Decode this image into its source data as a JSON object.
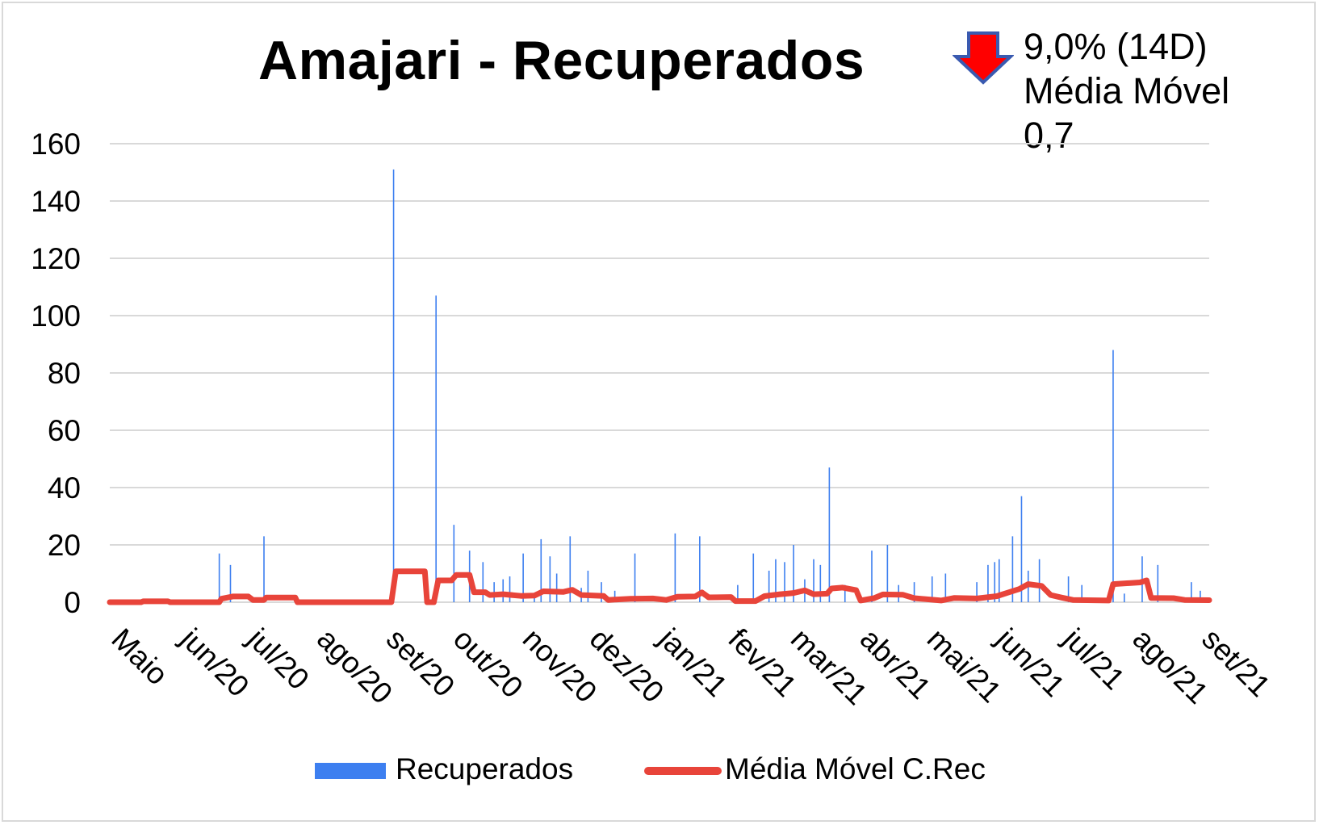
{
  "title": "Amajari - Recuperados",
  "annotation": {
    "trend_icon": "red-down-arrow-icon",
    "line1": "9,0% (14D)",
    "line2": "Média Móvel",
    "line3": "0,7"
  },
  "legend": {
    "bars_label": "Recuperados",
    "line_label": "Média Móvel C.Rec"
  },
  "colors": {
    "bars": "#3d7ff0",
    "line": "#e8443a",
    "grid": "#d9d9d9",
    "arrow_fill": "#ff0000",
    "arrow_stroke": "#3a5ab0"
  },
  "chart_data": {
    "type": "bar",
    "title": "Amajari - Recuperados",
    "xlabel": "",
    "ylabel": "",
    "ylim": [
      0,
      160
    ],
    "yticks": [
      0,
      20,
      40,
      60,
      80,
      100,
      120,
      140,
      160
    ],
    "grid": true,
    "legend_position": "bottom",
    "x_start": "2020-05-01",
    "x_end": "2021-09-05",
    "x_tick_labels": [
      "Maio",
      "jun/20",
      "jul/20",
      "ago/20",
      "set/20",
      "out/20",
      "nov/20",
      "dez/20",
      "jan/21",
      "fev/21",
      "mar/21",
      "abr/21",
      "mai/21",
      "jun/21",
      "jul/21",
      "ago/21",
      "set/21"
    ],
    "series": [
      {
        "name": "Recuperados",
        "type": "bar",
        "points": [
          [
            "2020-06-19",
            17
          ],
          [
            "2020-06-24",
            13
          ],
          [
            "2020-07-09",
            23
          ],
          [
            "2020-09-05",
            151
          ],
          [
            "2020-09-24",
            107
          ],
          [
            "2020-10-02",
            27
          ],
          [
            "2020-10-09",
            18
          ],
          [
            "2020-10-15",
            14
          ],
          [
            "2020-10-20",
            7
          ],
          [
            "2020-10-24",
            8
          ],
          [
            "2020-10-27",
            9
          ],
          [
            "2020-11-02",
            17
          ],
          [
            "2020-11-07",
            3
          ],
          [
            "2020-11-10",
            22
          ],
          [
            "2020-11-14",
            16
          ],
          [
            "2020-11-17",
            10
          ],
          [
            "2020-11-23",
            23
          ],
          [
            "2020-11-28",
            5
          ],
          [
            "2020-12-01",
            11
          ],
          [
            "2020-12-07",
            7
          ],
          [
            "2020-12-13",
            4
          ],
          [
            "2020-12-22",
            17
          ],
          [
            "2021-01-09",
            24
          ],
          [
            "2021-01-20",
            23
          ],
          [
            "2021-02-06",
            6
          ],
          [
            "2021-02-13",
            17
          ],
          [
            "2021-02-20",
            11
          ],
          [
            "2021-02-23",
            15
          ],
          [
            "2021-02-27",
            14
          ],
          [
            "2021-03-03",
            20
          ],
          [
            "2021-03-08",
            8
          ],
          [
            "2021-03-12",
            15
          ],
          [
            "2021-03-15",
            13
          ],
          [
            "2021-03-19",
            47
          ],
          [
            "2021-03-26",
            6
          ],
          [
            "2021-04-07",
            18
          ],
          [
            "2021-04-14",
            20
          ],
          [
            "2021-04-19",
            6
          ],
          [
            "2021-04-26",
            7
          ],
          [
            "2021-05-04",
            9
          ],
          [
            "2021-05-10",
            10
          ],
          [
            "2021-05-24",
            7
          ],
          [
            "2021-05-29",
            13
          ],
          [
            "2021-06-01",
            14
          ],
          [
            "2021-06-03",
            15
          ],
          [
            "2021-06-09",
            23
          ],
          [
            "2021-06-13",
            37
          ],
          [
            "2021-06-16",
            11
          ],
          [
            "2021-06-21",
            15
          ],
          [
            "2021-07-04",
            9
          ],
          [
            "2021-07-10",
            6
          ],
          [
            "2021-07-24",
            88
          ],
          [
            "2021-07-29",
            3
          ],
          [
            "2021-08-06",
            16
          ],
          [
            "2021-08-13",
            13
          ],
          [
            "2021-08-28",
            7
          ],
          [
            "2021-09-01",
            4
          ]
        ]
      },
      {
        "name": "Média Móvel C.Rec",
        "type": "line",
        "points": [
          [
            "2020-05-01",
            0
          ],
          [
            "2020-05-15",
            0
          ],
          [
            "2020-05-16",
            0.3
          ],
          [
            "2020-05-27",
            0.3
          ],
          [
            "2020-05-28",
            0
          ],
          [
            "2020-06-19",
            0
          ],
          [
            "2020-06-20",
            1.2
          ],
          [
            "2020-06-25",
            2
          ],
          [
            "2020-07-02",
            2
          ],
          [
            "2020-07-04",
            0.8
          ],
          [
            "2020-07-09",
            0.8
          ],
          [
            "2020-07-10",
            1.6
          ],
          [
            "2020-07-23",
            1.6
          ],
          [
            "2020-07-24",
            0
          ],
          [
            "2020-09-04",
            0
          ],
          [
            "2020-09-06",
            10.8
          ],
          [
            "2020-09-19",
            10.8
          ],
          [
            "2020-09-20",
            0
          ],
          [
            "2020-09-23",
            0
          ],
          [
            "2020-09-25",
            7.6
          ],
          [
            "2020-10-01",
            7.6
          ],
          [
            "2020-10-03",
            9.5
          ],
          [
            "2020-10-09",
            9.5
          ],
          [
            "2020-10-11",
            3.5
          ],
          [
            "2020-10-16",
            3.5
          ],
          [
            "2020-10-18",
            2.5
          ],
          [
            "2020-10-24",
            2.8
          ],
          [
            "2020-11-01",
            2.2
          ],
          [
            "2020-11-07",
            2.3
          ],
          [
            "2020-11-11",
            3.8
          ],
          [
            "2020-11-20",
            3.6
          ],
          [
            "2020-11-24",
            4.3
          ],
          [
            "2020-11-28",
            2.5
          ],
          [
            "2020-12-08",
            2.2
          ],
          [
            "2020-12-10",
            0.8
          ],
          [
            "2020-12-20",
            1.2
          ],
          [
            "2020-12-30",
            1.3
          ],
          [
            "2021-01-05",
            0.8
          ],
          [
            "2021-01-10",
            1.9
          ],
          [
            "2021-01-18",
            2
          ],
          [
            "2021-01-21",
            3.4
          ],
          [
            "2021-01-24",
            1.7
          ],
          [
            "2021-02-03",
            1.8
          ],
          [
            "2021-02-05",
            0.4
          ],
          [
            "2021-02-14",
            0.4
          ],
          [
            "2021-02-18",
            2.1
          ],
          [
            "2021-02-25",
            2.8
          ],
          [
            "2021-03-03",
            3.2
          ],
          [
            "2021-03-08",
            4.1
          ],
          [
            "2021-03-12",
            2.8
          ],
          [
            "2021-03-18",
            3
          ],
          [
            "2021-03-20",
            4.8
          ],
          [
            "2021-03-25",
            5.1
          ],
          [
            "2021-03-31",
            4.2
          ],
          [
            "2021-04-02",
            0.6
          ],
          [
            "2021-04-08",
            1.4
          ],
          [
            "2021-04-12",
            2.7
          ],
          [
            "2021-04-21",
            2.6
          ],
          [
            "2021-04-26",
            1.4
          ],
          [
            "2021-05-08",
            0.6
          ],
          [
            "2021-05-14",
            1.5
          ],
          [
            "2021-05-24",
            1.3
          ],
          [
            "2021-06-02",
            2.1
          ],
          [
            "2021-06-08",
            3.6
          ],
          [
            "2021-06-12",
            4.6
          ],
          [
            "2021-06-16",
            6.3
          ],
          [
            "2021-06-22",
            5.7
          ],
          [
            "2021-06-26",
            2.5
          ],
          [
            "2021-07-01",
            1.6
          ],
          [
            "2021-07-06",
            0.8
          ],
          [
            "2021-07-22",
            0.6
          ],
          [
            "2021-07-24",
            6.3
          ],
          [
            "2021-08-05",
            6.9
          ],
          [
            "2021-08-08",
            7.6
          ],
          [
            "2021-08-10",
            1.5
          ],
          [
            "2021-08-20",
            1.4
          ],
          [
            "2021-08-25",
            0.8
          ],
          [
            "2021-09-05",
            0.7
          ]
        ]
      }
    ]
  }
}
